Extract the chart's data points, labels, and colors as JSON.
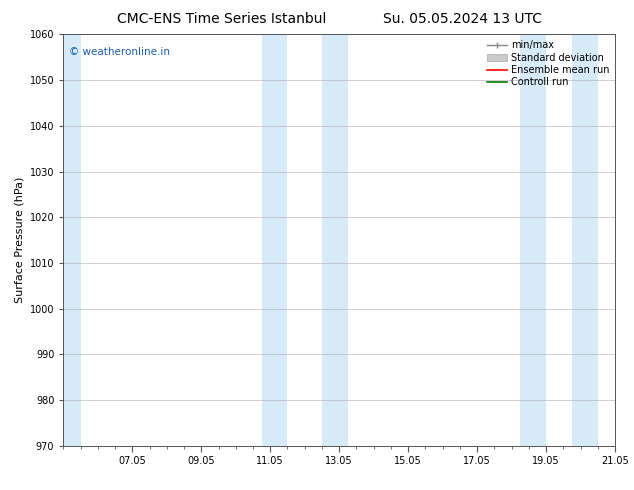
{
  "title_left": "CMC-ENS Time Series Istanbul",
  "title_right": "Su. 05.05.2024 13 UTC",
  "ylabel": "Surface Pressure (hPa)",
  "ylim": [
    970,
    1060
  ],
  "yticks": [
    970,
    980,
    990,
    1000,
    1010,
    1020,
    1030,
    1040,
    1050,
    1060
  ],
  "xlim": [
    0,
    16
  ],
  "xtick_positions": [
    2,
    4,
    6,
    8,
    10,
    12,
    14,
    16
  ],
  "xtick_labels": [
    "07.05",
    "09.05",
    "11.05",
    "13.05",
    "15.05",
    "17.05",
    "19.05",
    "21.05"
  ],
  "shaded_bands": [
    {
      "x_start": 0.0,
      "x_end": 0.5
    },
    {
      "x_start": 5.75,
      "x_end": 6.5
    },
    {
      "x_start": 7.5,
      "x_end": 8.25
    },
    {
      "x_start": 13.25,
      "x_end": 14.0
    },
    {
      "x_start": 14.75,
      "x_end": 15.5
    }
  ],
  "shaded_color": "#d6eaf8",
  "watermark_text": "© weatheronline.in",
  "watermark_color": "#1a5ea8",
  "bg_color": "#ffffff",
  "grid_color": "#aaaaaa",
  "spine_color": "#555555",
  "title_fontsize": 10,
  "tick_fontsize": 7,
  "ylabel_fontsize": 8,
  "legend_fontsize": 7
}
